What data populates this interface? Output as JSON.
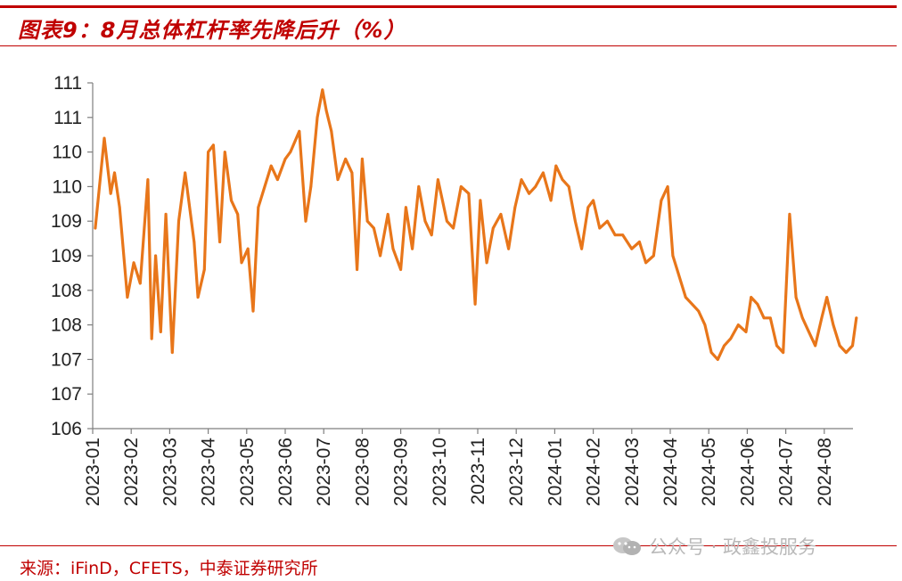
{
  "title": "图表9：8月总体杠杆率先降后升（%）",
  "source": "来源：iFinD，CFETS，中泰证券研究所",
  "watermark": {
    "text": "公众号 · 政鑫投服务",
    "icon": "wechat-icon"
  },
  "colors": {
    "accent": "#c00000",
    "series": "#e8761a",
    "axis": "#7f7f7f"
  },
  "chart_data": {
    "type": "line",
    "title": "图表9：8月总体杠杆率先降后升（%）",
    "xlabel": "",
    "ylabel": "",
    "ylim": [
      106,
      111
    ],
    "y_tick_labels": [
      "106",
      "107",
      "107",
      "108",
      "108",
      "109",
      "109",
      "110",
      "110",
      "111",
      "111"
    ],
    "x_tick_labels": [
      "2023-01",
      "2023-02",
      "2023-03",
      "2023-04",
      "2023-05",
      "2023-06",
      "2023-07",
      "2023-08",
      "2023-09",
      "2023-10",
      "2023-11",
      "2023-12",
      "2024-01",
      "2024-02",
      "2024-03",
      "2024-04",
      "2024-05",
      "2024-06",
      "2024-07",
      "2024-08"
    ],
    "grid": false,
    "legend": "none",
    "series": [
      {
        "x": [
          "2023-01-03",
          "2023-01-10",
          "2023-01-15",
          "2023-01-18",
          "2023-01-22",
          "2023-01-28",
          "2023-02-03",
          "2023-02-08",
          "2023-02-14",
          "2023-02-17",
          "2023-02-20",
          "2023-02-24",
          "2023-02-28",
          "2023-03-03",
          "2023-03-08",
          "2023-03-13",
          "2023-03-20",
          "2023-03-23",
          "2023-03-28",
          "2023-04-01",
          "2023-04-05",
          "2023-04-10",
          "2023-04-14",
          "2023-04-19",
          "2023-04-24",
          "2023-04-27",
          "2023-05-02",
          "2023-05-06",
          "2023-05-10",
          "2023-05-15",
          "2023-05-20",
          "2023-05-25",
          "2023-05-31",
          "2023-06-05",
          "2023-06-12",
          "2023-06-17",
          "2023-06-21",
          "2023-06-26",
          "2023-06-30",
          "2023-07-03",
          "2023-07-07",
          "2023-07-12",
          "2023-07-18",
          "2023-07-23",
          "2023-07-27",
          "2023-07-31",
          "2023-08-05",
          "2023-08-10",
          "2023-08-15",
          "2023-08-21",
          "2023-08-25",
          "2023-08-31",
          "2023-09-05",
          "2023-09-10",
          "2023-09-15",
          "2023-09-20",
          "2023-09-25",
          "2023-09-30",
          "2023-10-07",
          "2023-10-12",
          "2023-10-18",
          "2023-10-24",
          "2023-10-29",
          "2023-11-03",
          "2023-11-08",
          "2023-11-13",
          "2023-11-19",
          "2023-11-25",
          "2023-11-30",
          "2023-12-05",
          "2023-12-11",
          "2023-12-16",
          "2023-12-22",
          "2023-12-28",
          "2024-01-02",
          "2024-01-07",
          "2024-01-12",
          "2024-01-17",
          "2024-01-22",
          "2024-01-27",
          "2024-02-01",
          "2024-02-06",
          "2024-02-12",
          "2024-02-18",
          "2024-02-24",
          "2024-03-01",
          "2024-03-07",
          "2024-03-12",
          "2024-03-18",
          "2024-03-24",
          "2024-03-29",
          "2024-04-03",
          "2024-04-08",
          "2024-04-13",
          "2024-04-18",
          "2024-04-23",
          "2024-04-28",
          "2024-05-03",
          "2024-05-08",
          "2024-05-13",
          "2024-05-18",
          "2024-05-24",
          "2024-05-30",
          "2024-06-04",
          "2024-06-09",
          "2024-06-14",
          "2024-06-19",
          "2024-06-24",
          "2024-06-29",
          "2024-07-04",
          "2024-07-09",
          "2024-07-14",
          "2024-07-19",
          "2024-07-24",
          "2024-07-29",
          "2024-08-03",
          "2024-08-08",
          "2024-08-13",
          "2024-08-18",
          "2024-08-23",
          "2024-08-26"
        ],
        "values": [
          108.9,
          110.2,
          109.4,
          109.7,
          109.2,
          107.9,
          108.4,
          108.1,
          109.6,
          107.3,
          108.5,
          107.4,
          109.1,
          107.1,
          109.0,
          109.7,
          108.7,
          107.9,
          108.3,
          110.0,
          110.1,
          108.7,
          110.0,
          109.3,
          109.1,
          108.4,
          108.6,
          107.7,
          109.2,
          109.5,
          109.8,
          109.6,
          109.9,
          110.0,
          110.3,
          109.0,
          109.5,
          110.5,
          110.9,
          110.6,
          110.3,
          109.6,
          109.9,
          109.7,
          108.3,
          109.9,
          109.0,
          108.9,
          108.5,
          109.1,
          108.6,
          108.3,
          109.2,
          108.6,
          109.5,
          109.0,
          108.8,
          109.6,
          109.0,
          108.9,
          109.5,
          109.4,
          107.8,
          109.3,
          108.4,
          108.9,
          109.1,
          108.6,
          109.2,
          109.6,
          109.4,
          109.5,
          109.7,
          109.3,
          109.8,
          109.6,
          109.5,
          109.0,
          108.6,
          109.2,
          109.3,
          108.9,
          109.0,
          108.8,
          108.8,
          108.6,
          108.7,
          108.4,
          108.5,
          109.3,
          109.5,
          108.5,
          108.2,
          107.9,
          107.8,
          107.7,
          107.5,
          107.1,
          107.0,
          107.2,
          107.3,
          107.5,
          107.4,
          107.9,
          107.8,
          107.6,
          107.6,
          107.2,
          107.1,
          109.1,
          107.9,
          107.6,
          107.4,
          107.2,
          107.6,
          107.9,
          107.5,
          107.2,
          107.1,
          107.2,
          107.6
        ]
      }
    ]
  }
}
